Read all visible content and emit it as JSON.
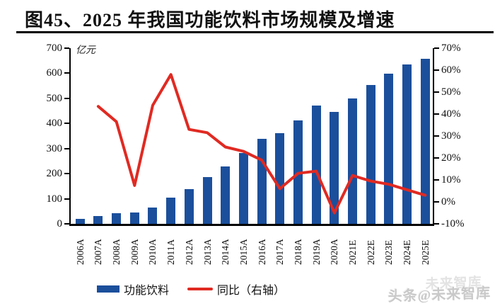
{
  "page_title": "图45、2025 年我国功能饮料市场规模及增速",
  "watermark": {
    "text": "头条@未来智库",
    "ghost": "未来智库"
  },
  "legend": {
    "bar_label": "功能饮料",
    "line_label": "同比（右轴）"
  },
  "colors": {
    "bar": "#1B4F9C",
    "line": "#E02A22",
    "axis": "#000000"
  },
  "chart_data": {
    "type": "bar",
    "subtype": "dual-axis-bar-line",
    "title": "图45、2025 年我国功能饮料市场规模及增速",
    "legend_position": "bottom",
    "grid": false,
    "categories": [
      "2006A",
      "2007A",
      "2008A",
      "2009A",
      "2010A",
      "2011A",
      "2012A",
      "2013A",
      "2014A",
      "2015A",
      "2016A",
      "2017A",
      "2018A",
      "2019A",
      "2020A",
      "2021E",
      "2022E",
      "2023E",
      "2024E",
      "2025E"
    ],
    "series": [
      {
        "name": "功能饮料",
        "type": "bar",
        "axis": "left",
        "unit": "亿元",
        "color": "#1B4F9C",
        "values": [
          21,
          30,
          41,
          44,
          65,
          104,
          138,
          186,
          230,
          281,
          340,
          362,
          411,
          470,
          446,
          501,
          552,
          599,
          634,
          657
        ]
      },
      {
        "name": "同比（右轴）",
        "type": "line",
        "axis": "right",
        "unit": "%",
        "color": "#E02A22",
        "values": [
          null,
          43.5,
          36.5,
          7.5,
          44,
          58,
          33,
          31.5,
          25,
          23,
          19,
          6,
          13,
          14,
          -5,
          12,
          9.5,
          8,
          5.5,
          3
        ]
      }
    ],
    "left_axis": {
      "label": "亿元",
      "min": 0,
      "max": 700,
      "tick_values": [
        0,
        100,
        200,
        300,
        400,
        500,
        600,
        700
      ],
      "tick_labels": [
        "0",
        "100",
        "200",
        "300",
        "400",
        "500",
        "600",
        "700"
      ]
    },
    "right_axis": {
      "min": -10,
      "max": 70,
      "tick_values": [
        -10,
        0,
        10,
        20,
        30,
        40,
        50,
        60,
        70
      ],
      "tick_labels": [
        "-10%",
        "0%",
        "10%",
        "20%",
        "30%",
        "40%",
        "50%",
        "60%",
        "70%"
      ]
    }
  }
}
